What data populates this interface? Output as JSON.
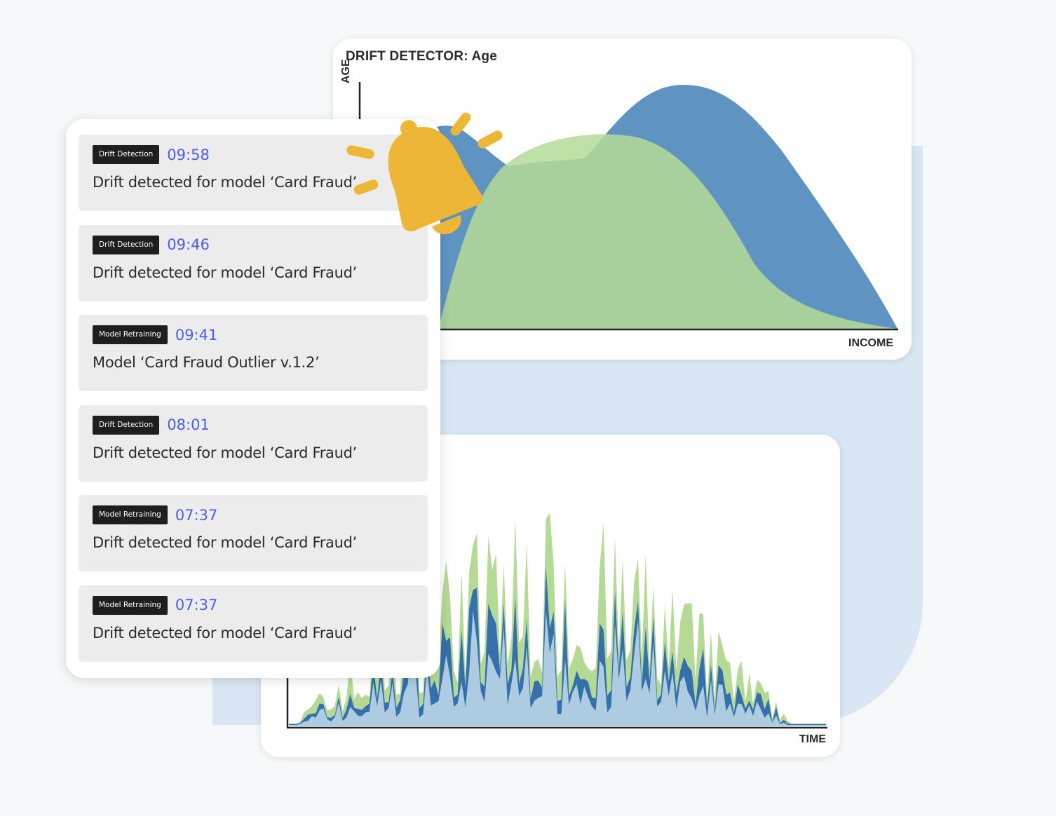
{
  "drift_chart": {
    "title": "DRIFT DETECTOR:  Age",
    "ylabel": "AGE",
    "xlabel": "INCOME"
  },
  "time_chart": {
    "xlabel": "TIME"
  },
  "colors": {
    "blue_area": "#5f93c2",
    "green_area": "#b4da96",
    "time_blue": "#3570ad",
    "time_light_blue": "#adcbe1",
    "badge_bg": "#1e1e1e",
    "time_text": "#4a5ef0",
    "bell": "#eeb636"
  },
  "notifications": [
    {
      "badge": "Drift Detection",
      "time": "09:58",
      "message": "Drift detected for model ‘Card Fraud’"
    },
    {
      "badge": "Drift Detection",
      "time": "09:46",
      "message": "Drift detected for model ‘Card Fraud’"
    },
    {
      "badge": "Model Retraining",
      "time": "09:41",
      "message": "Model ‘Card Fraud Outlier v.1.2’"
    },
    {
      "badge": "Drift Detection",
      "time": "08:01",
      "message": "Drift detected for model ‘Card Fraud’"
    },
    {
      "badge": "Model Retraining",
      "time": "07:37",
      "message": "Drift detected for model ‘Card Fraud’"
    },
    {
      "badge": "Model Retraining",
      "time": "07:37",
      "message": "Drift detected for model ‘Card Fraud’"
    }
  ],
  "icons": {
    "alert": "bell-icon"
  }
}
